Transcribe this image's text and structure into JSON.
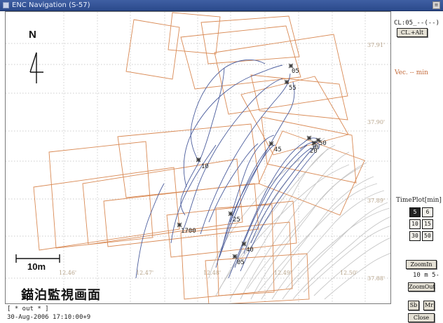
{
  "window": {
    "title": "ENC Navigation (S-57)"
  },
  "map": {
    "north_label": "N",
    "scale_label": "10m",
    "screen_title": "錨泊監視画面",
    "lat_labels": [
      "37.91'",
      "37.90'",
      "37.89'",
      "37.88'"
    ],
    "lon_labels": [
      "12.46'",
      "12.47'",
      "12.48'",
      "12.49'",
      "12.50'"
    ],
    "points": [
      "05",
      "55",
      "45",
      "10",
      "30",
      "50",
      "20",
      "1700",
      "25",
      "40",
      "05"
    ]
  },
  "status": {
    "line1": "[ * out * ]",
    "line2": "30-Aug-2006 17:10:00+9"
  },
  "sidebar": {
    "cl_text": "CL:05_--(--)",
    "cl_button": "CL.+Alt",
    "vec_text": "Vec.  -- min",
    "timeplot_label": "TimePlot[min]",
    "timeplot_options": [
      "5",
      "6",
      "10",
      "15",
      "30",
      "50"
    ],
    "timeplot_selected": "5",
    "zoomin_button": "ZoomIn",
    "zoom_text": "10 m 5-",
    "zoomout_button": "ZoomOut",
    "sb_button": "Sb",
    "mr_button": "Mr",
    "close_button": "Close"
  },
  "colors": {
    "track_blue": "#4a5c9c",
    "track_gray": "#c8c8c8",
    "orange": "#d98a55",
    "title_bar": "#2f4f94"
  }
}
